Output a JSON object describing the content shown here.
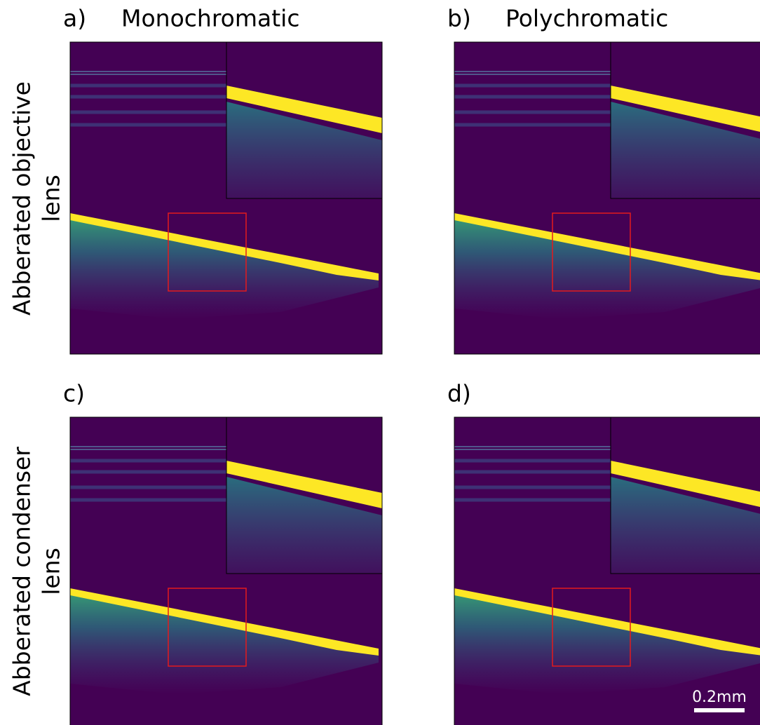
{
  "panels": [
    {
      "label": "a)",
      "title": "Monochromatic"
    },
    {
      "label": "b)",
      "title": "Polychromatic"
    },
    {
      "label": "c)"
    },
    {
      "label": "d)"
    }
  ],
  "row_labels": [
    {
      "lines": [
        "Abberated objective",
        "lens"
      ]
    },
    {
      "lines": [
        "Abberated condenser",
        "lens"
      ]
    }
  ],
  "scale_bar": "0.2mm"
}
